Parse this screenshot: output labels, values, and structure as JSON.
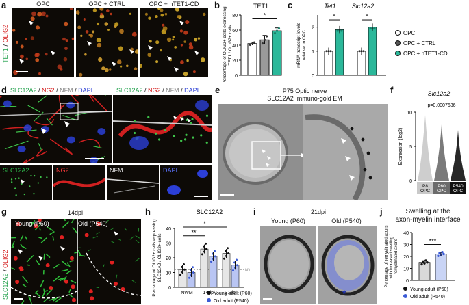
{
  "panels": {
    "a": {
      "letter": "a",
      "side_label_green": "TET1",
      "side_label_sep": " / ",
      "side_label_red": "OLIG2",
      "headers": [
        "OPC",
        "OPC + CTRL",
        "OPC + hTET1-CD"
      ]
    },
    "b": {
      "letter": "b",
      "chart_data": {
        "type": "bar",
        "title": "TET1",
        "ylabel": "Percentage of OLIG2+ cells expressing TET1 / OLIG2+ cells",
        "categories": [
          "OPC",
          "OPC + CTRL",
          "OPC + hTET1-CD"
        ],
        "values": [
          42,
          47,
          59
        ],
        "errors": [
          2,
          6,
          4
        ],
        "ylim": [
          0,
          80
        ],
        "yticks": [
          0,
          20,
          40,
          60,
          80
        ],
        "significance": "*",
        "colors": [
          "#ffffff",
          "#9a9a9a",
          "#2bb89a"
        ]
      }
    },
    "c": {
      "letter": "c",
      "chart_data": {
        "type": "bar",
        "ylabel": "mRNA transcript levels relative to OPC",
        "groups": [
          "Tet1",
          "Slc12a2"
        ],
        "series": [
          {
            "name": "OPC",
            "values": [
              1.0,
              1.0
            ]
          },
          {
            "name": "OPC + hTET1-CD",
            "values": [
              1.9,
              2.0
            ]
          }
        ],
        "ylim": [
          0,
          2.5
        ],
        "yticks": [
          0,
          1,
          2
        ],
        "significance": [
          "*",
          "*"
        ]
      },
      "legend": [
        {
          "label": "OPC",
          "color": "#ffffff"
        },
        {
          "label": "OPC + CTRL",
          "color": "#555555"
        },
        {
          "label": "OPC + hTET1-CD",
          "color": "#2bb89a"
        }
      ]
    },
    "d": {
      "letter": "d",
      "header_parts": [
        "SLC12A2",
        " / ",
        "NG2",
        " / ",
        "NFM",
        " / ",
        "DAPI"
      ],
      "sub_labels": [
        "SLC12A2",
        "NG2",
        "NFM",
        "DAPI"
      ]
    },
    "e": {
      "letter": "e",
      "title_line1": "P75 Optic nerve",
      "title_line2": "SLC12A2 Immuno-gold EM"
    },
    "f": {
      "letter": "f",
      "chart_data": {
        "type": "violin",
        "title": "Slc12a2",
        "ylabel": "Expression (log2)",
        "annotation": "p=0.0007636",
        "categories": [
          "P8 OPC",
          "P60 OPC",
          "P540 OPC"
        ],
        "ylim": [
          0,
          10
        ],
        "yticks": [
          0,
          5,
          10
        ],
        "colors": [
          "#c9c9c9",
          "#6b6b6b",
          "#111111"
        ]
      }
    },
    "g": {
      "letter": "g",
      "title": "14dpl",
      "side_label_green": "SLC12A2",
      "side_label_sep": " / ",
      "side_label_red": "OLIG2",
      "conditions": [
        "Young (P60)",
        "Old (P540)"
      ]
    },
    "h": {
      "letter": "h",
      "chart_data": {
        "type": "bar",
        "title": "SLC12A2",
        "ylabel": "Percentage of OLIG2+ cells expressing SLC12A2 / OLIG2+ cells",
        "categories": [
          "NWM",
          "14dpl",
          "21dpl"
        ],
        "series": [
          {
            "name": "Young adult (P60)",
            "values": [
              12,
              26,
              23
            ]
          },
          {
            "name": "Old adult (P540)",
            "values": [
              10,
              21,
              15
            ]
          }
        ],
        "ylim": [
          0,
          40
        ],
        "yticks": [
          0,
          10,
          20,
          30,
          40
        ],
        "significance": [
          "**",
          "*"
        ],
        "nwm_line_label": "NWM"
      },
      "legend": [
        {
          "label": "Young adult (P60)",
          "color": "#111111"
        },
        {
          "label": "Old adult (P540)",
          "color": "#3b5bd6"
        }
      ]
    },
    "i": {
      "letter": "i",
      "title": "21dpi",
      "conditions": [
        "Young (P60)",
        "Old (P540)"
      ],
      "marker": "*"
    },
    "j": {
      "letter": "j",
      "title_line1": "Swelling at the",
      "title_line2": "axon-myelin interface",
      "chart_data": {
        "type": "bar",
        "ylabel": "Percentage of remyelinated axons with increased swelling / remyelinated axons",
        "categories": [
          "Young adult (P60)",
          "Old adult (P540)"
        ],
        "values": [
          15,
          22
        ],
        "ylim": [
          0,
          40
        ],
        "yticks": [
          0,
          10,
          20,
          30,
          40
        ],
        "significance": "***",
        "colors": [
          "#d9d9d9",
          "#c9d4f5"
        ]
      }
    }
  }
}
